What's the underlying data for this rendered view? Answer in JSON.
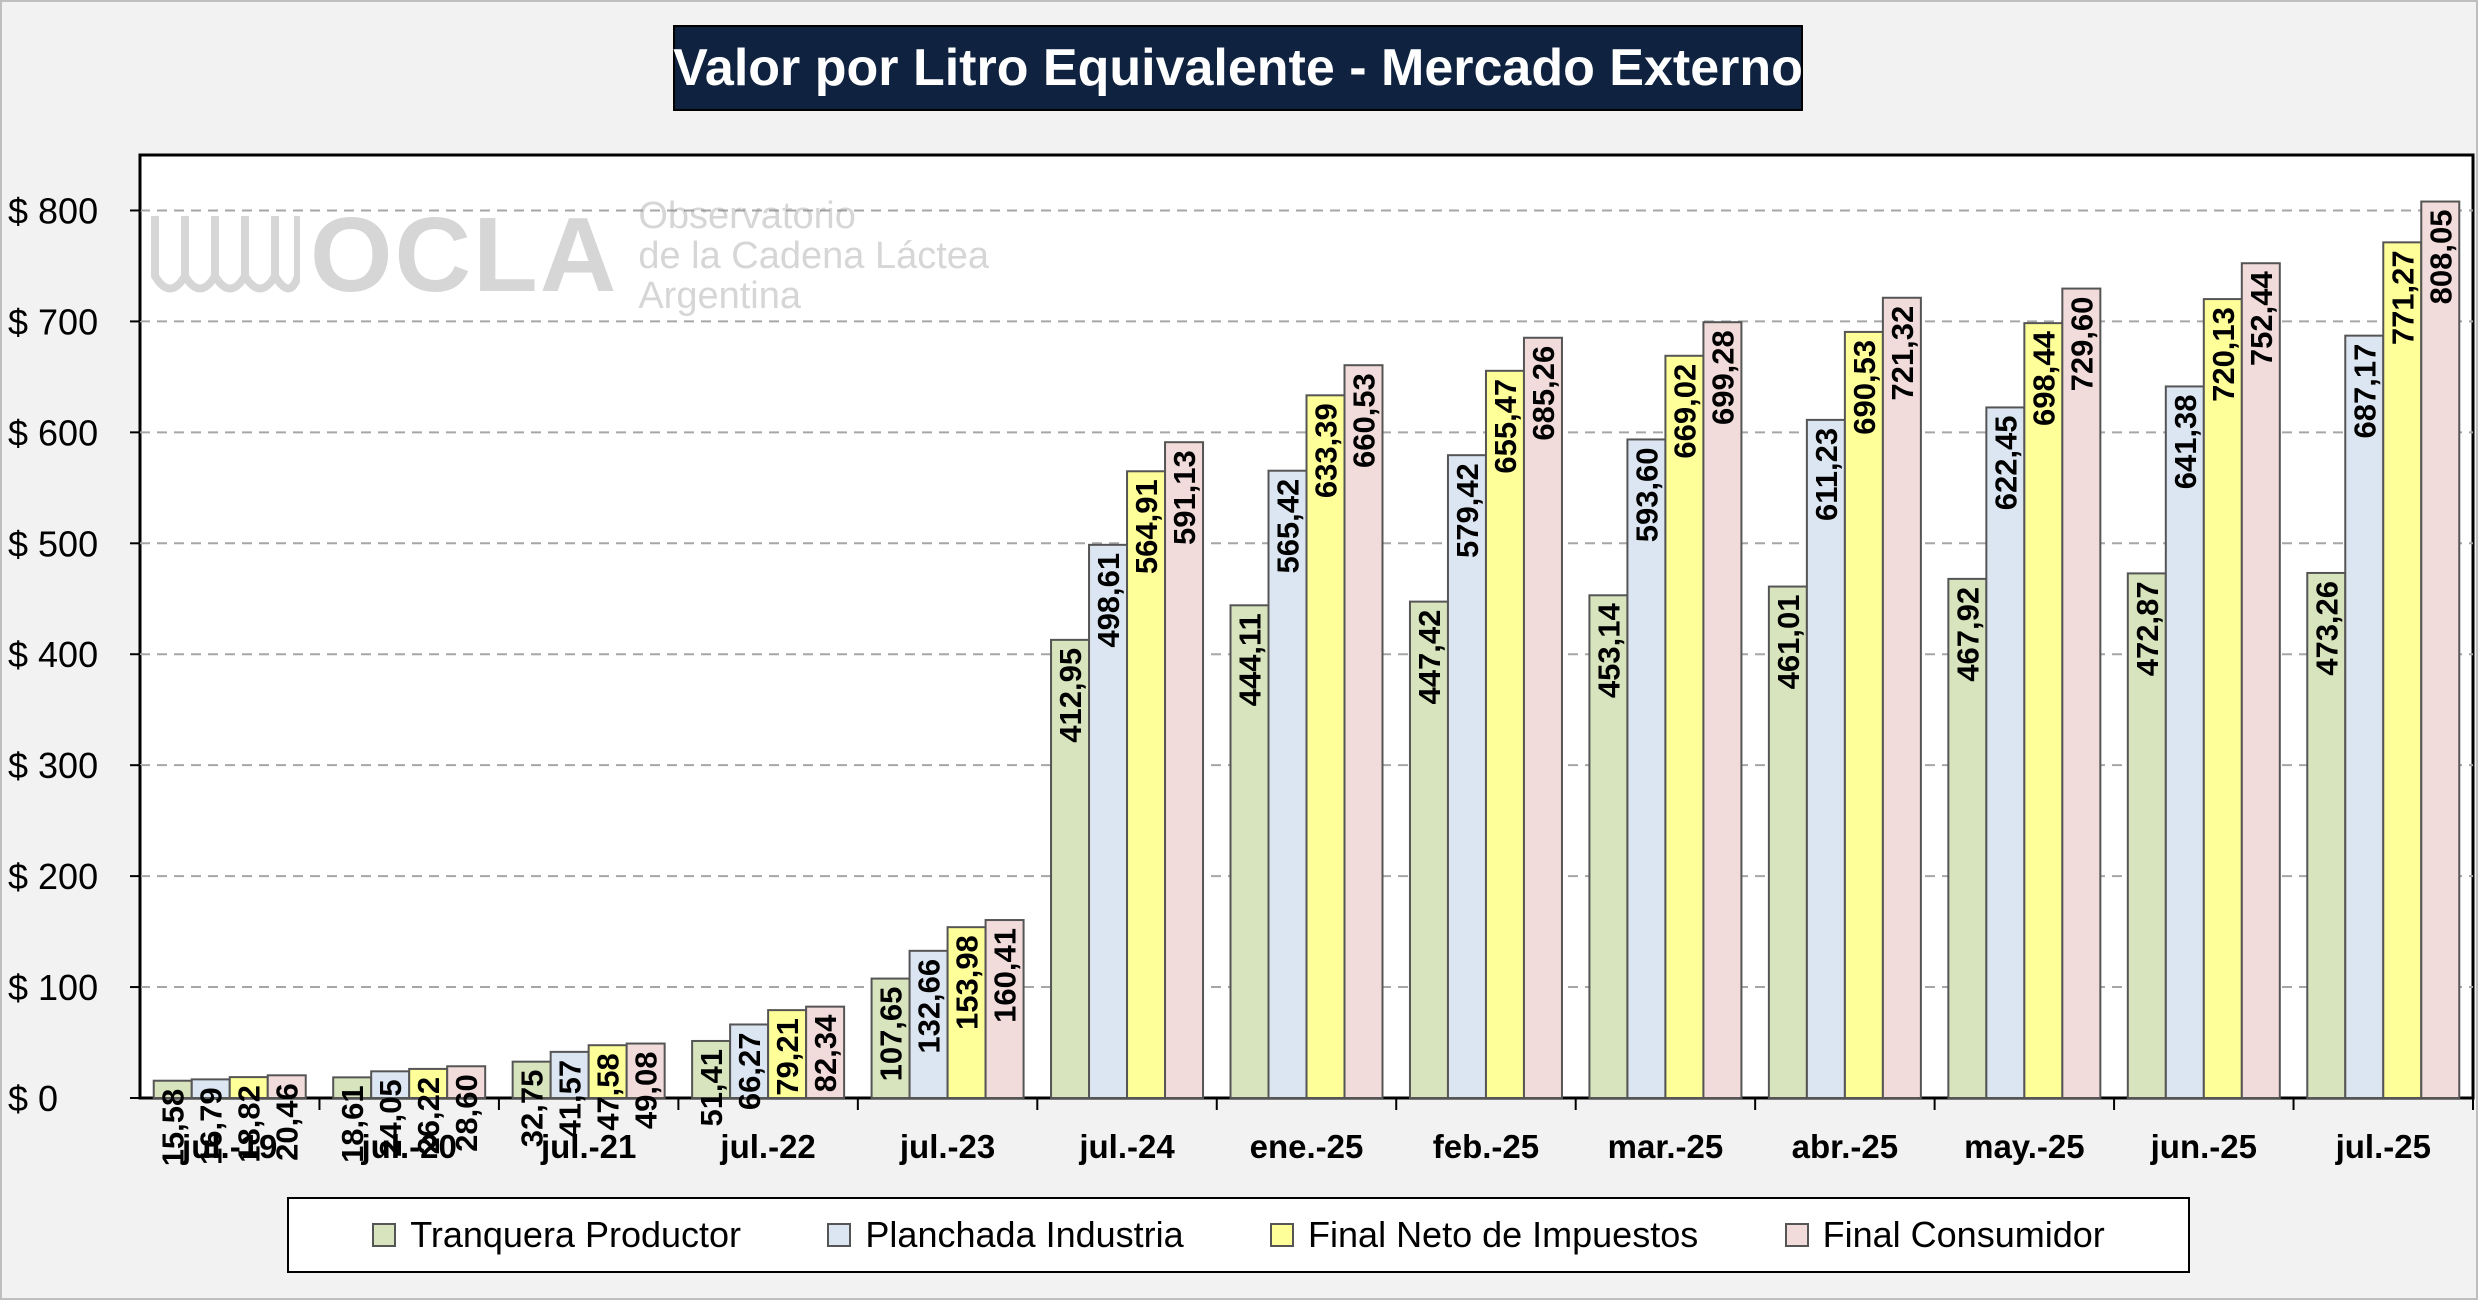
{
  "title": "Valor por Litro Equivalente - Mercado Externo",
  "watermark": {
    "logo": "OCLA",
    "line1": "Observatorio",
    "line2": "de la Cadena Láctea",
    "line3": "Argentina"
  },
  "chart_data": {
    "type": "bar",
    "title": "Valor por Litro Equivalente - Mercado Externo",
    "xlabel": "",
    "ylabel": "",
    "ylim": [
      0,
      850
    ],
    "yticks": [
      0,
      100,
      200,
      300,
      400,
      500,
      600,
      700,
      800
    ],
    "ytick_labels": [
      "$ 0",
      "$ 100",
      "$ 200",
      "$ 300",
      "$ 400",
      "$ 500",
      "$ 600",
      "$ 700",
      "$ 800"
    ],
    "grid": true,
    "legend_position": "bottom",
    "categories": [
      "jul.-19",
      "jul.-20",
      "jul.-21",
      "jul.-22",
      "jul.-23",
      "jul.-24",
      "ene.-25",
      "feb.-25",
      "mar.-25",
      "abr.-25",
      "may.-25",
      "jun.-25",
      "jul.-25"
    ],
    "series": [
      {
        "name": "Tranquera Productor",
        "color": "#d7e4bd",
        "values": [
          15.58,
          18.61,
          32.75,
          51.41,
          107.65,
          412.95,
          444.11,
          447.42,
          453.14,
          461.01,
          467.92,
          472.87,
          473.26
        ],
        "labels": [
          "15,58",
          "18,61",
          "32,75",
          "51,41",
          "107,65",
          "412,95",
          "444,11",
          "447,42",
          "453,14",
          "461,01",
          "467,92",
          "472,87",
          "473,26"
        ]
      },
      {
        "name": "Planchada Industria",
        "color": "#dce6f2",
        "values": [
          16.79,
          24.05,
          41.57,
          66.27,
          132.66,
          498.61,
          565.42,
          579.42,
          593.6,
          611.23,
          622.45,
          641.38,
          687.17
        ],
        "labels": [
          "16,79",
          "24,05",
          "41,57",
          "66,27",
          "132,66",
          "498,61",
          "565,42",
          "579,42",
          "593,60",
          "611,23",
          "622,45",
          "641,38",
          "687,17"
        ]
      },
      {
        "name": "Final Neto de Impuestos",
        "color": "#ffff99",
        "values": [
          18.82,
          26.22,
          47.58,
          79.21,
          153.98,
          564.91,
          633.39,
          655.47,
          669.02,
          690.53,
          698.44,
          720.13,
          771.27
        ],
        "labels": [
          "18,82",
          "26,22",
          "47,58",
          "79,21",
          "153,98",
          "564,91",
          "633,39",
          "655,47",
          "669,02",
          "690,53",
          "698,44",
          "720,13",
          "771,27"
        ]
      },
      {
        "name": "Final Consumidor",
        "color": "#f2dcdb",
        "values": [
          20.46,
          28.6,
          49.08,
          82.34,
          160.41,
          591.13,
          660.53,
          685.26,
          699.28,
          721.32,
          729.6,
          752.44,
          808.05
        ],
        "labels": [
          "20,46",
          "28,60",
          "49,08",
          "82,34",
          "160,41",
          "591,13",
          "660,53",
          "685,26",
          "699,28",
          "721,32",
          "729,60",
          "752,44",
          "808,05"
        ]
      }
    ]
  }
}
